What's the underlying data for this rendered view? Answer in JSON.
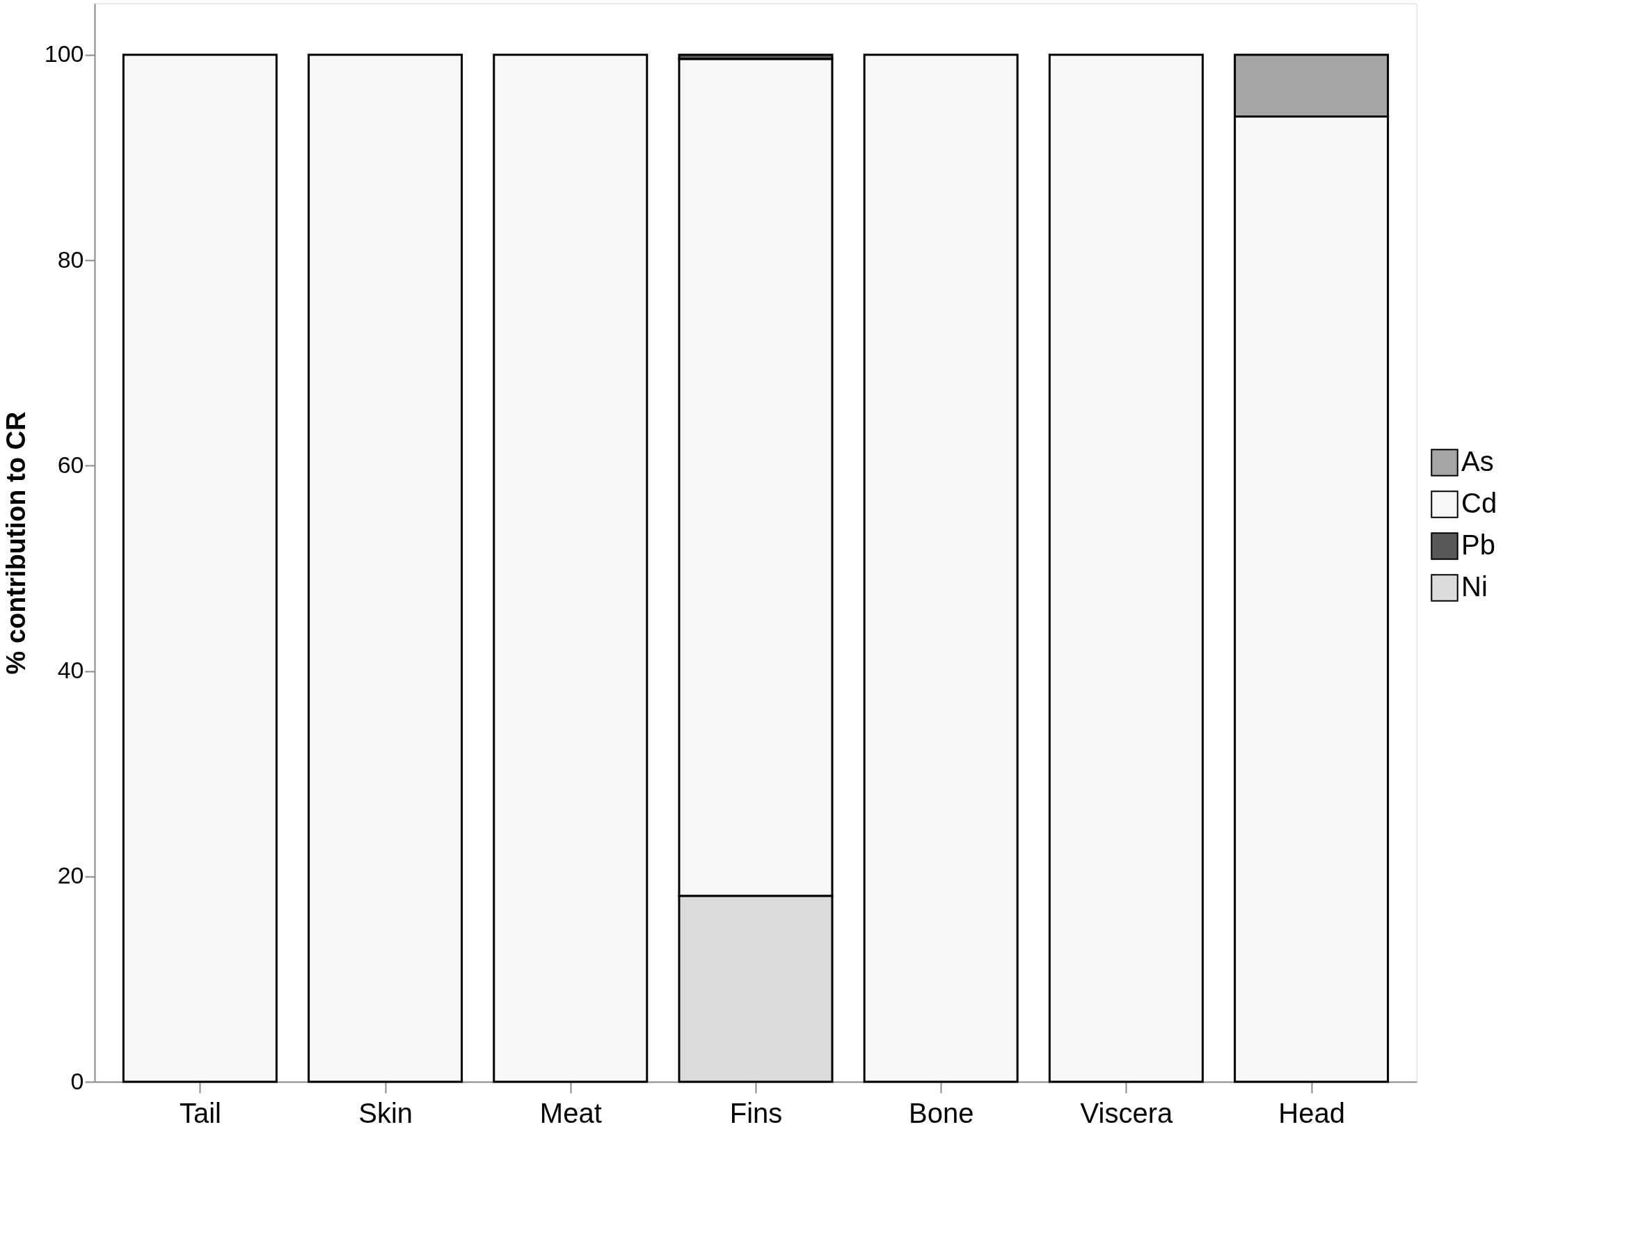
{
  "chart_data": {
    "type": "bar",
    "stacked": true,
    "ylabel": "% contribution to CR",
    "categories": [
      "Tail",
      "Skin",
      "Meat",
      "Fins",
      "Bone",
      "Viscera",
      "Head"
    ],
    "series": [
      {
        "name": "Ni",
        "color": "#dcdcdc",
        "values": [
          null,
          null,
          null,
          18.1,
          null,
          null,
          null
        ]
      },
      {
        "name": "Cd",
        "color": "#f7f7f7",
        "values": [
          100,
          100,
          100,
          81.5,
          100,
          100,
          94
        ]
      },
      {
        "name": "Pb",
        "color": "#595959",
        "values": [
          null,
          null,
          null,
          0.4,
          null,
          null,
          null
        ]
      },
      {
        "name": "As",
        "color": "#a6a6a6",
        "values": [
          null,
          null,
          null,
          null,
          null,
          null,
          6
        ]
      }
    ],
    "ylim": [
      0,
      105
    ],
    "yticks": [
      0,
      20,
      40,
      60,
      80,
      100
    ],
    "grid": false,
    "legend": "right"
  }
}
